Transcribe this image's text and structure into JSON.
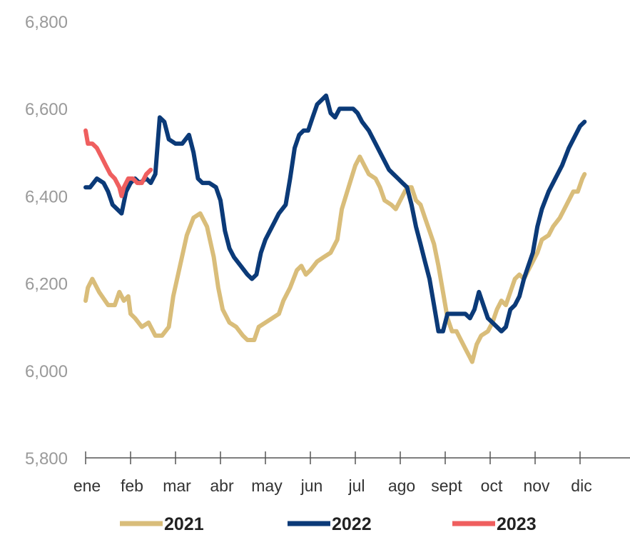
{
  "chart_data": {
    "type": "line",
    "title": "",
    "xlabel": "",
    "ylabel": "",
    "ylim": [
      5800,
      6800
    ],
    "yticks": [
      "6,800",
      "6,600",
      "6,400",
      "6,200",
      "6,000",
      "5,800"
    ],
    "months": [
      "ene",
      "feb",
      "mar",
      "abr",
      "may",
      "jun",
      "jul",
      "ago",
      "sept",
      "oct",
      "nov",
      "dic"
    ],
    "grid": false,
    "legend_position": "bottom",
    "series": [
      {
        "name": "2021",
        "color": "#d9bd7a",
        "points": [
          [
            0,
            6160
          ],
          [
            0.05,
            6190
          ],
          [
            0.15,
            6210
          ],
          [
            0.3,
            6180
          ],
          [
            0.5,
            6150
          ],
          [
            0.65,
            6150
          ],
          [
            0.75,
            6180
          ],
          [
            0.85,
            6160
          ],
          [
            0.95,
            6170
          ],
          [
            1.0,
            6130
          ],
          [
            1.1,
            6120
          ],
          [
            1.25,
            6100
          ],
          [
            1.4,
            6110
          ],
          [
            1.55,
            6080
          ],
          [
            1.7,
            6080
          ],
          [
            1.85,
            6100
          ],
          [
            1.95,
            6170
          ],
          [
            2.1,
            6240
          ],
          [
            2.25,
            6310
          ],
          [
            2.4,
            6350
          ],
          [
            2.55,
            6360
          ],
          [
            2.7,
            6330
          ],
          [
            2.85,
            6260
          ],
          [
            2.95,
            6190
          ],
          [
            3.05,
            6140
          ],
          [
            3.2,
            6110
          ],
          [
            3.35,
            6100
          ],
          [
            3.5,
            6080
          ],
          [
            3.6,
            6070
          ],
          [
            3.75,
            6070
          ],
          [
            3.85,
            6100
          ],
          [
            4.0,
            6110
          ],
          [
            4.15,
            6120
          ],
          [
            4.3,
            6130
          ],
          [
            4.4,
            6160
          ],
          [
            4.55,
            6190
          ],
          [
            4.7,
            6230
          ],
          [
            4.8,
            6240
          ],
          [
            4.9,
            6220
          ],
          [
            5.0,
            6230
          ],
          [
            5.15,
            6250
          ],
          [
            5.3,
            6260
          ],
          [
            5.45,
            6270
          ],
          [
            5.6,
            6300
          ],
          [
            5.7,
            6370
          ],
          [
            5.85,
            6420
          ],
          [
            6.0,
            6470
          ],
          [
            6.1,
            6490
          ],
          [
            6.2,
            6470
          ],
          [
            6.3,
            6450
          ],
          [
            6.45,
            6440
          ],
          [
            6.55,
            6420
          ],
          [
            6.65,
            6390
          ],
          [
            6.8,
            6380
          ],
          [
            6.9,
            6370
          ],
          [
            7.0,
            6390
          ],
          [
            7.15,
            6420
          ],
          [
            7.25,
            6420
          ],
          [
            7.35,
            6390
          ],
          [
            7.45,
            6380
          ],
          [
            7.55,
            6350
          ],
          [
            7.65,
            6320
          ],
          [
            7.75,
            6290
          ],
          [
            7.85,
            6240
          ],
          [
            7.95,
            6180
          ],
          [
            8.05,
            6120
          ],
          [
            8.15,
            6090
          ],
          [
            8.25,
            6090
          ],
          [
            8.35,
            6070
          ],
          [
            8.45,
            6050
          ],
          [
            8.55,
            6030
          ],
          [
            8.6,
            6020
          ],
          [
            8.7,
            6060
          ],
          [
            8.8,
            6080
          ],
          [
            8.95,
            6090
          ],
          [
            9.05,
            6110
          ],
          [
            9.15,
            6140
          ],
          [
            9.25,
            6160
          ],
          [
            9.35,
            6150
          ],
          [
            9.45,
            6180
          ],
          [
            9.55,
            6210
          ],
          [
            9.65,
            6220
          ],
          [
            9.75,
            6210
          ],
          [
            9.85,
            6230
          ],
          [
            9.95,
            6250
          ],
          [
            10.05,
            6270
          ],
          [
            10.15,
            6300
          ],
          [
            10.3,
            6310
          ],
          [
            10.4,
            6330
          ],
          [
            10.55,
            6350
          ],
          [
            10.7,
            6380
          ],
          [
            10.85,
            6410
          ],
          [
            10.95,
            6410
          ],
          [
            11.05,
            6440
          ],
          [
            11.1,
            6450
          ]
        ]
      },
      {
        "name": "2022",
        "color": "#0b3a78",
        "points": [
          [
            0,
            6420
          ],
          [
            0.1,
            6420
          ],
          [
            0.25,
            6440
          ],
          [
            0.4,
            6430
          ],
          [
            0.5,
            6410
          ],
          [
            0.6,
            6380
          ],
          [
            0.7,
            6370
          ],
          [
            0.8,
            6360
          ],
          [
            0.9,
            6410
          ],
          [
            1.0,
            6430
          ],
          [
            1.1,
            6440
          ],
          [
            1.2,
            6430
          ],
          [
            1.35,
            6440
          ],
          [
            1.45,
            6430
          ],
          [
            1.55,
            6450
          ],
          [
            1.65,
            6580
          ],
          [
            1.75,
            6570
          ],
          [
            1.85,
            6530
          ],
          [
            2.0,
            6520
          ],
          [
            2.15,
            6520
          ],
          [
            2.3,
            6540
          ],
          [
            2.4,
            6500
          ],
          [
            2.5,
            6440
          ],
          [
            2.6,
            6430
          ],
          [
            2.75,
            6430
          ],
          [
            2.9,
            6420
          ],
          [
            3.0,
            6390
          ],
          [
            3.1,
            6320
          ],
          [
            3.2,
            6280
          ],
          [
            3.3,
            6260
          ],
          [
            3.45,
            6240
          ],
          [
            3.6,
            6220
          ],
          [
            3.7,
            6210
          ],
          [
            3.8,
            6220
          ],
          [
            3.9,
            6270
          ],
          [
            4.0,
            6300
          ],
          [
            4.1,
            6320
          ],
          [
            4.2,
            6340
          ],
          [
            4.3,
            6360
          ],
          [
            4.45,
            6380
          ],
          [
            4.55,
            6440
          ],
          [
            4.65,
            6510
          ],
          [
            4.75,
            6540
          ],
          [
            4.85,
            6550
          ],
          [
            4.95,
            6550
          ],
          [
            5.05,
            6580
          ],
          [
            5.15,
            6610
          ],
          [
            5.25,
            6620
          ],
          [
            5.35,
            6630
          ],
          [
            5.45,
            6590
          ],
          [
            5.55,
            6580
          ],
          [
            5.65,
            6600
          ],
          [
            5.8,
            6600
          ],
          [
            5.95,
            6600
          ],
          [
            6.05,
            6590
          ],
          [
            6.15,
            6570
          ],
          [
            6.3,
            6550
          ],
          [
            6.45,
            6520
          ],
          [
            6.6,
            6490
          ],
          [
            6.75,
            6460
          ],
          [
            6.85,
            6450
          ],
          [
            6.95,
            6440
          ],
          [
            7.05,
            6430
          ],
          [
            7.15,
            6420
          ],
          [
            7.25,
            6380
          ],
          [
            7.35,
            6330
          ],
          [
            7.45,
            6290
          ],
          [
            7.55,
            6250
          ],
          [
            7.65,
            6210
          ],
          [
            7.75,
            6150
          ],
          [
            7.85,
            6090
          ],
          [
            7.95,
            6090
          ],
          [
            8.05,
            6130
          ],
          [
            8.2,
            6130
          ],
          [
            8.3,
            6130
          ],
          [
            8.45,
            6130
          ],
          [
            8.55,
            6120
          ],
          [
            8.65,
            6140
          ],
          [
            8.75,
            6180
          ],
          [
            8.85,
            6150
          ],
          [
            8.95,
            6120
          ],
          [
            9.05,
            6110
          ],
          [
            9.15,
            6100
          ],
          [
            9.25,
            6090
          ],
          [
            9.35,
            6100
          ],
          [
            9.45,
            6140
          ],
          [
            9.55,
            6150
          ],
          [
            9.65,
            6170
          ],
          [
            9.75,
            6210
          ],
          [
            9.85,
            6240
          ],
          [
            9.95,
            6270
          ],
          [
            10.05,
            6330
          ],
          [
            10.15,
            6370
          ],
          [
            10.3,
            6410
          ],
          [
            10.45,
            6440
          ],
          [
            10.6,
            6470
          ],
          [
            10.75,
            6510
          ],
          [
            10.9,
            6540
          ],
          [
            11.0,
            6560
          ],
          [
            11.1,
            6570
          ]
        ]
      },
      {
        "name": "2023",
        "color": "#ef5f5f",
        "points": [
          [
            0,
            6550
          ],
          [
            0.05,
            6520
          ],
          [
            0.15,
            6520
          ],
          [
            0.25,
            6510
          ],
          [
            0.35,
            6490
          ],
          [
            0.45,
            6470
          ],
          [
            0.55,
            6450
          ],
          [
            0.65,
            6440
          ],
          [
            0.75,
            6420
          ],
          [
            0.8,
            6400
          ],
          [
            0.85,
            6420
          ],
          [
            0.95,
            6440
          ],
          [
            1.05,
            6440
          ],
          [
            1.15,
            6430
          ],
          [
            1.25,
            6430
          ],
          [
            1.35,
            6450
          ],
          [
            1.45,
            6460
          ]
        ]
      }
    ]
  }
}
